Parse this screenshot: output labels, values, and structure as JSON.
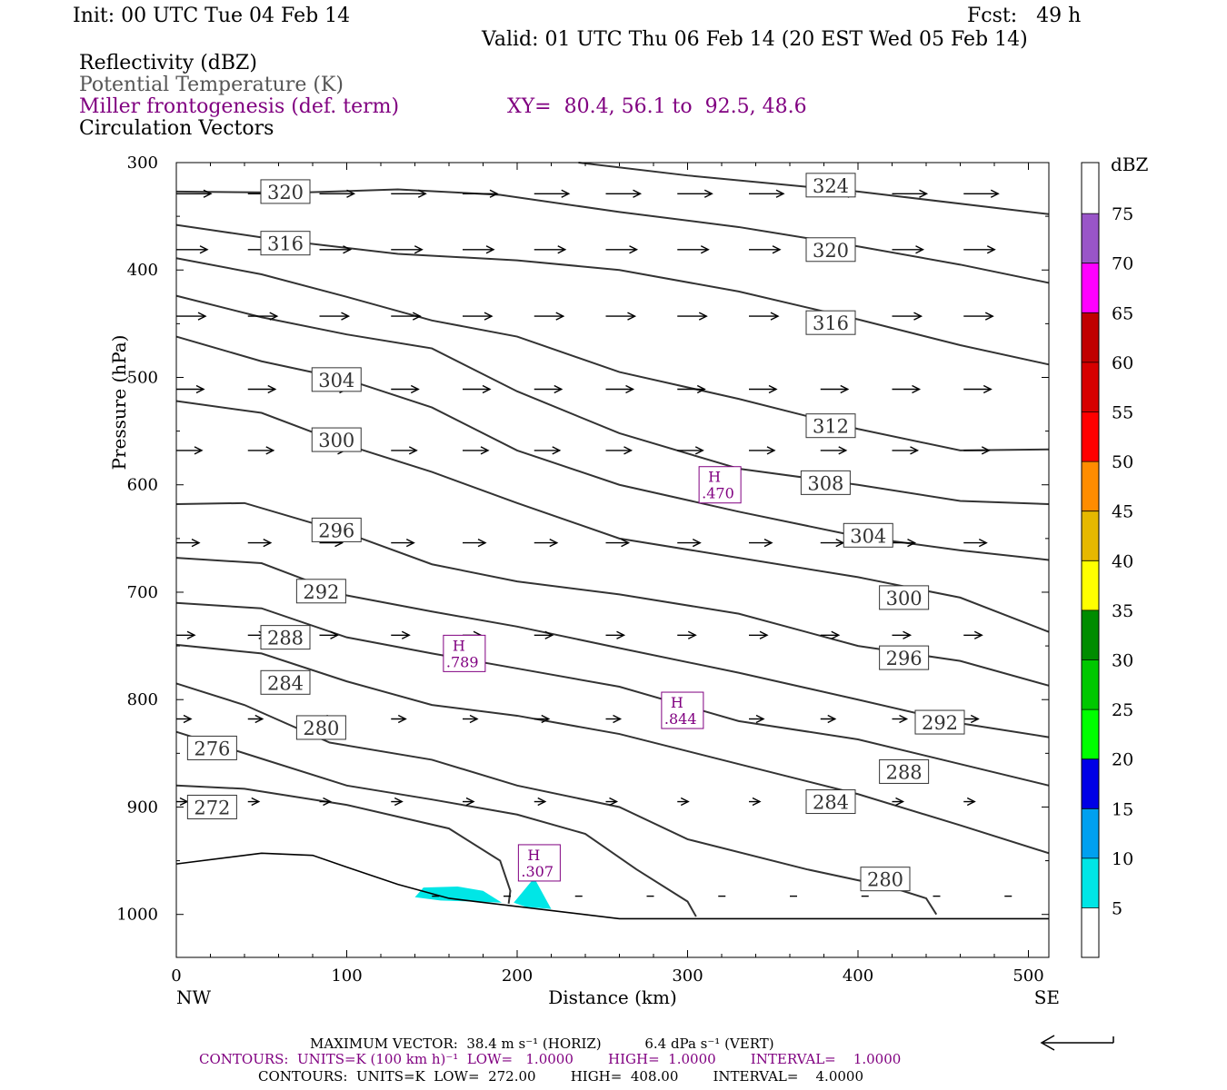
{
  "header": {
    "init": "Init: 00 UTC Tue 04 Feb 14",
    "fcst": "Fcst:   49 h",
    "valid": "Valid: 01 UTC Thu 06 Feb 14 (20 EST Wed 05 Feb 14)"
  },
  "fields": {
    "reflectivity": "Reflectivity (dBZ)",
    "theta": "Potential Temperature (K)",
    "miller": "Miller frontogenesis (def. term)",
    "xy": "XY=  80.4, 56.1 to  92.5, 48.6",
    "vectors": "Circulation Vectors"
  },
  "chart_data": {
    "type": "cross-section",
    "ylabel": "Pressure (hPa)",
    "xlabel": "Distance (km)",
    "xlim": [
      0,
      512
    ],
    "ylim": [
      1040,
      300
    ],
    "y_log": false,
    "x_ticks": [
      0,
      100,
      200,
      300,
      400,
      500
    ],
    "y_ticks": [
      300,
      400,
      500,
      600,
      700,
      800,
      900,
      1000
    ],
    "x_end_labels": {
      "left": "NW",
      "right": "SE"
    },
    "colorbar": {
      "unit": "dBZ",
      "levels": [
        "5",
        "10",
        "15",
        "20",
        "25",
        "30",
        "35",
        "40",
        "45",
        "50",
        "55",
        "60",
        "65",
        "70",
        "75"
      ],
      "colors": [
        "#00e6e6",
        "#00a0f0",
        "#0000e6",
        "#00ff00",
        "#00c800",
        "#008c00",
        "#ffff00",
        "#e6b800",
        "#ff8c00",
        "#ff0000",
        "#d60000",
        "#c00000",
        "#ff00ff",
        "#9955c8",
        "#ffffff"
      ]
    },
    "isentropes": [
      {
        "label": "324",
        "points": [
          [
            236,
            300
          ],
          [
            300,
            312
          ],
          [
            400,
            327
          ],
          [
            512,
            348
          ]
        ],
        "labels_at": [
          [
            384,
            321
          ]
        ]
      },
      {
        "label": "320",
        "points": [
          [
            0,
            327
          ],
          [
            70,
            328
          ],
          [
            130,
            325
          ],
          [
            190,
            330
          ],
          [
            260,
            346
          ],
          [
            330,
            360
          ],
          [
            400,
            378
          ],
          [
            460,
            395
          ],
          [
            512,
            412
          ]
        ],
        "labels_at": [
          [
            64,
            327
          ],
          [
            384,
            381
          ]
        ]
      },
      {
        "label": "316",
        "points": [
          [
            0,
            358
          ],
          [
            60,
            372
          ],
          [
            130,
            385
          ],
          [
            200,
            391
          ],
          [
            260,
            400
          ],
          [
            330,
            420
          ],
          [
            400,
            446
          ],
          [
            460,
            470
          ],
          [
            512,
            488
          ]
        ],
        "labels_at": [
          [
            64,
            375
          ],
          [
            384,
            449
          ]
        ]
      },
      {
        "label": "312",
        "points": [
          [
            0,
            389
          ],
          [
            50,
            404
          ],
          [
            100,
            425
          ],
          [
            150,
            447
          ],
          [
            200,
            462
          ],
          [
            260,
            495
          ],
          [
            330,
            520
          ],
          [
            400,
            548
          ],
          [
            460,
            568
          ],
          [
            512,
            567
          ]
        ],
        "labels_at": [
          [
            384,
            545
          ]
        ]
      },
      {
        "label": "308",
        "points": [
          [
            0,
            424
          ],
          [
            50,
            444
          ],
          [
            100,
            460
          ],
          [
            150,
            473
          ],
          [
            200,
            513
          ],
          [
            260,
            552
          ],
          [
            330,
            585
          ],
          [
            400,
            600
          ],
          [
            460,
            615
          ],
          [
            512,
            618
          ]
        ],
        "labels_at": [
          [
            381,
            598
          ]
        ]
      },
      {
        "label": "304",
        "points": [
          [
            0,
            462
          ],
          [
            50,
            485
          ],
          [
            100,
            502
          ],
          [
            150,
            528
          ],
          [
            200,
            568
          ],
          [
            260,
            600
          ],
          [
            330,
            625
          ],
          [
            400,
            648
          ],
          [
            460,
            661
          ],
          [
            512,
            670
          ]
        ],
        "labels_at": [
          [
            94,
            502
          ],
          [
            406,
            647
          ]
        ]
      },
      {
        "label": "300",
        "points": [
          [
            0,
            522
          ],
          [
            50,
            533
          ],
          [
            100,
            563
          ],
          [
            150,
            588
          ],
          [
            200,
            617
          ],
          [
            260,
            650
          ],
          [
            330,
            668
          ],
          [
            400,
            686
          ],
          [
            460,
            705
          ],
          [
            512,
            737
          ]
        ],
        "labels_at": [
          [
            94,
            558
          ],
          [
            427,
            705
          ]
        ]
      },
      {
        "label": "296",
        "points": [
          [
            0,
            618
          ],
          [
            40,
            617
          ],
          [
            100,
            645
          ],
          [
            150,
            674
          ],
          [
            200,
            690
          ],
          [
            260,
            702
          ],
          [
            330,
            720
          ],
          [
            400,
            750
          ],
          [
            460,
            764
          ],
          [
            512,
            787
          ]
        ],
        "labels_at": [
          [
            94,
            642
          ],
          [
            427,
            761
          ]
        ]
      },
      {
        "label": "292",
        "points": [
          [
            0,
            668
          ],
          [
            50,
            673
          ],
          [
            100,
            703
          ],
          [
            150,
            718
          ],
          [
            200,
            732
          ],
          [
            260,
            752
          ],
          [
            330,
            775
          ],
          [
            400,
            800
          ],
          [
            460,
            822
          ],
          [
            512,
            835
          ]
        ],
        "labels_at": [
          [
            85,
            699
          ],
          [
            448,
            821
          ]
        ]
      },
      {
        "label": "288",
        "points": [
          [
            0,
            710
          ],
          [
            50,
            715
          ],
          [
            100,
            742
          ],
          [
            150,
            757
          ],
          [
            200,
            771
          ],
          [
            260,
            788
          ],
          [
            330,
            820
          ],
          [
            400,
            837
          ],
          [
            460,
            860
          ],
          [
            512,
            880
          ]
        ],
        "labels_at": [
          [
            64,
            742
          ],
          [
            427,
            867
          ]
        ]
      },
      {
        "label": "284",
        "points": [
          [
            0,
            749
          ],
          [
            50,
            757
          ],
          [
            100,
            783
          ],
          [
            150,
            805
          ],
          [
            200,
            815
          ],
          [
            260,
            832
          ],
          [
            330,
            860
          ],
          [
            400,
            888
          ],
          [
            460,
            917
          ],
          [
            512,
            943
          ]
        ],
        "labels_at": [
          [
            64,
            784
          ],
          [
            384,
            895
          ]
        ]
      },
      {
        "label": "280",
        "points": [
          [
            0,
            785
          ],
          [
            40,
            805
          ],
          [
            90,
            840
          ],
          [
            150,
            856
          ],
          [
            200,
            880
          ],
          [
            260,
            900
          ],
          [
            300,
            930
          ],
          [
            370,
            958
          ],
          [
            420,
            975
          ],
          [
            440,
            985
          ],
          [
            446,
            1000
          ]
        ],
        "labels_at": [
          [
            85,
            826
          ],
          [
            416,
            967
          ]
        ]
      },
      {
        "label": "276",
        "points": [
          [
            0,
            830
          ],
          [
            50,
            855
          ],
          [
            100,
            880
          ],
          [
            150,
            893
          ],
          [
            200,
            907
          ],
          [
            240,
            925
          ],
          [
            270,
            958
          ],
          [
            300,
            988
          ],
          [
            305,
            1002
          ]
        ],
        "labels_at": [
          [
            21,
            845
          ]
        ]
      },
      {
        "label": "272",
        "points": [
          [
            0,
            880
          ],
          [
            40,
            883
          ],
          [
            100,
            898
          ],
          [
            160,
            920
          ],
          [
            190,
            950
          ],
          [
            196,
            978
          ],
          [
            195,
            990
          ]
        ],
        "labels_at": [
          [
            21,
            900
          ]
        ]
      }
    ],
    "extra_line": [
      [
        0,
        953
      ],
      [
        50,
        943
      ],
      [
        80,
        945
      ],
      [
        100,
        956
      ],
      [
        130,
        972
      ],
      [
        160,
        985
      ],
      [
        260,
        1004
      ],
      [
        512,
        1004
      ]
    ],
    "max_points": [
      {
        "label": "H",
        "value": ".470",
        "x": 319,
        "p": 600
      },
      {
        "label": "H",
        "value": ".789",
        "x": 169,
        "p": 757
      },
      {
        "label": "H",
        "value": ".844",
        "x": 297,
        "p": 810
      },
      {
        "label": "H",
        "value": ".307",
        "x": 213,
        "p": 952
      }
    ],
    "reflectivity_patches": [
      {
        "dbz": 5,
        "points": [
          [
            140,
            984
          ],
          [
            145,
            975
          ],
          [
            165,
            974
          ],
          [
            180,
            978
          ],
          [
            191,
            989
          ],
          [
            155,
            987
          ]
        ]
      },
      {
        "dbz": 5,
        "points": [
          [
            198,
            989
          ],
          [
            210,
            966
          ],
          [
            220,
            995
          ],
          [
            205,
            993
          ]
        ]
      }
    ],
    "vector_rows": [
      {
        "p": 329,
        "x0": 0,
        "dx": 42,
        "x1": 512,
        "len": 38
      },
      {
        "p": 381,
        "x0": 0,
        "dx": 42,
        "x1": 512,
        "len": 34
      },
      {
        "p": 443,
        "x0": 0,
        "dx": 42,
        "x1": 512,
        "len": 32
      },
      {
        "p": 511,
        "x0": 0,
        "dx": 42,
        "x1": 512,
        "len": 30
      },
      {
        "p": 568,
        "x0": 0,
        "dx": 42,
        "x1": 512,
        "len": 28
      },
      {
        "p": 654,
        "x0": 0,
        "dx": 42,
        "x1": 512,
        "len": 25
      },
      {
        "p": 740,
        "x0": 0,
        "dx": 42,
        "x1": 512,
        "len": 20
      },
      {
        "p": 818,
        "x0": 0,
        "dx": 42,
        "x1": 512,
        "len": 16
      },
      {
        "p": 895,
        "x0": 0,
        "dx": 42,
        "x1": 512,
        "len": 12
      },
      {
        "p": 983,
        "x0": 150,
        "dx": 42,
        "x1": 512,
        "len": 8
      }
    ]
  },
  "footer": {
    "max_vector": "MAXIMUM VECTOR:  38.4 m s⁻¹ (HORIZ)          6.4 dPa s⁻¹ (VERT)",
    "contours1": "CONTOURS:  UNITS=K (100 km h)⁻¹  LOW=   1.0000        HIGH=  1.0000        INTERVAL=    1.0000",
    "contours2": "CONTOURS:  UNITS=K  LOW=  272.00        HIGH=  408.00        INTERVAL=    4.0000"
  }
}
